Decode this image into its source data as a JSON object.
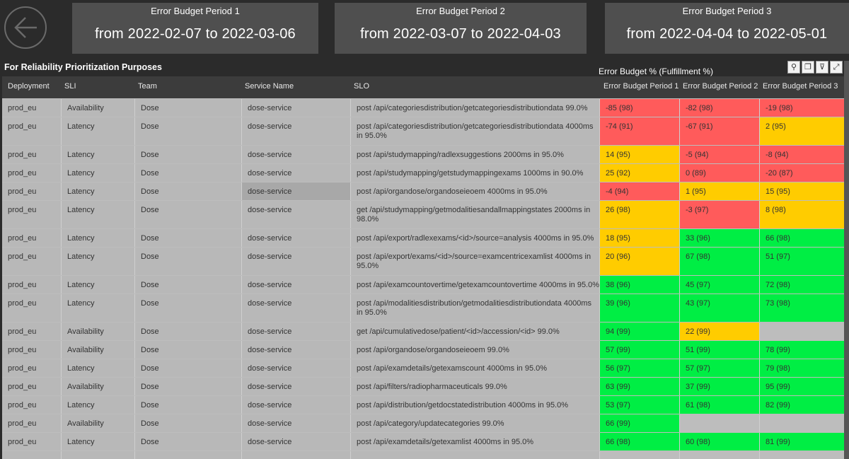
{
  "nav": {
    "back_icon": "back-arrow-icon"
  },
  "periods": [
    {
      "title": "Error Budget Period 1",
      "range": "from 2022-02-07 to 2022-03-06"
    },
    {
      "title": "Error Budget Period 2",
      "range": "from 2022-03-07 to 2022-04-03"
    },
    {
      "title": "Error Budget Period 3",
      "range": "from 2022-04-04 to 2022-05-01"
    }
  ],
  "table": {
    "title": "For Reliability Prioritization Purposes",
    "caption": "Error Budget % (Fulfillment %)",
    "toolbar": [
      {
        "name": "pin-icon",
        "glyph": "⚲"
      },
      {
        "name": "copy-icon",
        "glyph": "❐"
      },
      {
        "name": "filter-icon",
        "glyph": "⊽"
      },
      {
        "name": "focus-mode-icon",
        "glyph": "⤢"
      }
    ],
    "headers": {
      "deployment": "Deployment",
      "sli": "SLI",
      "team": "Team",
      "service": "Service Name",
      "slo": "SLO",
      "eb1": "Error Budget Period 1",
      "eb2": "Error Budget Period 2",
      "eb3": "Error Budget Period 3"
    },
    "colors": {
      "red": "#ff5b5b",
      "yellow": "#ffcc00",
      "green": "#00ee44"
    },
    "rows": [
      {
        "deployment": "prod_eu",
        "sli": "Availability",
        "team": "Dose",
        "service": "dose-service",
        "slo": "post /api/categoriesdistribution/getcategoriesdistributiondata 99.0%",
        "eb1": "-85 (98)",
        "eb2": "-82 (98)",
        "eb3": "-19 (98)",
        "c1": "red",
        "c2": "red",
        "c3": "red"
      },
      {
        "deployment": "prod_eu",
        "sli": "Latency",
        "team": "Dose",
        "service": "dose-service",
        "slo": "post /api/categoriesdistribution/getcategoriesdistributiondata 4000ms in 95.0%",
        "eb1": "-74 (91)",
        "eb2": "-67 (91)",
        "eb3": "2 (95)",
        "c1": "red",
        "c2": "red",
        "c3": "yel"
      },
      {
        "deployment": "prod_eu",
        "sli": "Latency",
        "team": "Dose",
        "service": "dose-service",
        "slo": "post /api/studymapping/radlexsuggestions 2000ms in 95.0%",
        "eb1": "14 (95)",
        "eb2": "-5 (94)",
        "eb3": "-8 (94)",
        "c1": "yel",
        "c2": "red",
        "c3": "red"
      },
      {
        "deployment": "prod_eu",
        "sli": "Latency",
        "team": "Dose",
        "service": "dose-service",
        "slo": "post /api/studymapping/getstudymappingexams 1000ms in 90.0%",
        "eb1": "25 (92)",
        "eb2": "0 (89)",
        "eb3": "-20 (87)",
        "c1": "yel",
        "c2": "red",
        "c3": "red"
      },
      {
        "deployment": "prod_eu",
        "sli": "Latency",
        "team": "Dose",
        "service": "dose-service",
        "slo": "post /api/organdose/organdoseieoem 4000ms in 95.0%",
        "eb1": "-4 (94)",
        "eb2": "1 (95)",
        "eb3": "15 (95)",
        "c1": "red",
        "c2": "yel",
        "c3": "yel",
        "sel": true
      },
      {
        "deployment": "prod_eu",
        "sli": "Latency",
        "team": "Dose",
        "service": "dose-service",
        "slo": "get /api/studymapping/getmodalitiesandallmappingstates 2000ms in 98.0%",
        "eb1": "26 (98)",
        "eb2": "-3 (97)",
        "eb3": "8 (98)",
        "c1": "yel",
        "c2": "red",
        "c3": "yel"
      },
      {
        "deployment": "prod_eu",
        "sli": "Latency",
        "team": "Dose",
        "service": "dose-service",
        "slo": "post /api/export/radlexexams/<id>/source=analysis 4000ms in 95.0%",
        "eb1": "18 (95)",
        "eb2": "33 (96)",
        "eb3": "66 (98)",
        "c1": "yel",
        "c2": "grn",
        "c3": "grn"
      },
      {
        "deployment": "prod_eu",
        "sli": "Latency",
        "team": "Dose",
        "service": "dose-service",
        "slo": "post /api/export/exams/<id>/source=examcentricexamlist 4000ms in 95.0%",
        "eb1": "20 (96)",
        "eb2": "67 (98)",
        "eb3": "51 (97)",
        "c1": "yel",
        "c2": "grn",
        "c3": "grn"
      },
      {
        "deployment": "prod_eu",
        "sli": "Latency",
        "team": "Dose",
        "service": "dose-service",
        "slo": "post /api/examcountovertime/getexamcountovertime 4000ms in 95.0%",
        "eb1": "38 (96)",
        "eb2": "45 (97)",
        "eb3": "72 (98)",
        "c1": "grn",
        "c2": "grn",
        "c3": "grn"
      },
      {
        "deployment": "prod_eu",
        "sli": "Latency",
        "team": "Dose",
        "service": "dose-service",
        "slo": "post /api/modalitiesdistribution/getmodalitiesdistributiondata 4000ms in 95.0%",
        "eb1": "39 (96)",
        "eb2": "43 (97)",
        "eb3": "73 (98)",
        "c1": "grn",
        "c2": "grn",
        "c3": "grn"
      },
      {
        "deployment": "prod_eu",
        "sli": "Availability",
        "team": "Dose",
        "service": "dose-service",
        "slo": "get /api/cumulativedose/patient/<id>/accession/<id> 99.0%",
        "eb1": "94 (99)",
        "eb2": "22 (99)",
        "eb3": "",
        "c1": "grn",
        "c2": "yel",
        "c3": "gry"
      },
      {
        "deployment": "prod_eu",
        "sli": "Availability",
        "team": "Dose",
        "service": "dose-service",
        "slo": "post /api/organdose/organdoseieoem 99.0%",
        "eb1": "57 (99)",
        "eb2": "51 (99)",
        "eb3": "78 (99)",
        "c1": "grn",
        "c2": "grn",
        "c3": "grn"
      },
      {
        "deployment": "prod_eu",
        "sli": "Latency",
        "team": "Dose",
        "service": "dose-service",
        "slo": "post /api/examdetails/getexamscount 4000ms in 95.0%",
        "eb1": "56 (97)",
        "eb2": "57 (97)",
        "eb3": "79 (98)",
        "c1": "grn",
        "c2": "grn",
        "c3": "grn"
      },
      {
        "deployment": "prod_eu",
        "sli": "Availability",
        "team": "Dose",
        "service": "dose-service",
        "slo": "post /api/filters/radiopharmaceuticals 99.0%",
        "eb1": "63 (99)",
        "eb2": "37 (99)",
        "eb3": "95 (99)",
        "c1": "grn",
        "c2": "grn",
        "c3": "grn"
      },
      {
        "deployment": "prod_eu",
        "sli": "Latency",
        "team": "Dose",
        "service": "dose-service",
        "slo": "post /api/distribution/getdocstatedistribution 4000ms in 95.0%",
        "eb1": "53 (97)",
        "eb2": "61 (98)",
        "eb3": "82 (99)",
        "c1": "grn",
        "c2": "grn",
        "c3": "grn"
      },
      {
        "deployment": "prod_eu",
        "sli": "Availability",
        "team": "Dose",
        "service": "dose-service",
        "slo": "post /api/category/updatecategories 99.0%",
        "eb1": "66 (99)",
        "eb2": "",
        "eb3": "",
        "c1": "grn",
        "c2": "gry",
        "c3": "gry"
      },
      {
        "deployment": "prod_eu",
        "sli": "Latency",
        "team": "Dose",
        "service": "dose-service",
        "slo": "post /api/examdetails/getexamlist 4000ms in 95.0%",
        "eb1": "66 (98)",
        "eb2": "60 (98)",
        "eb3": "81 (99)",
        "c1": "grn",
        "c2": "grn",
        "c3": "grn"
      },
      {
        "deployment": "",
        "sli": "",
        "team": "",
        "service": "",
        "slo": "",
        "eb1": "",
        "eb2": "",
        "eb3": "",
        "c1": "gry",
        "c2": "gry",
        "c3": "gry"
      }
    ]
  }
}
